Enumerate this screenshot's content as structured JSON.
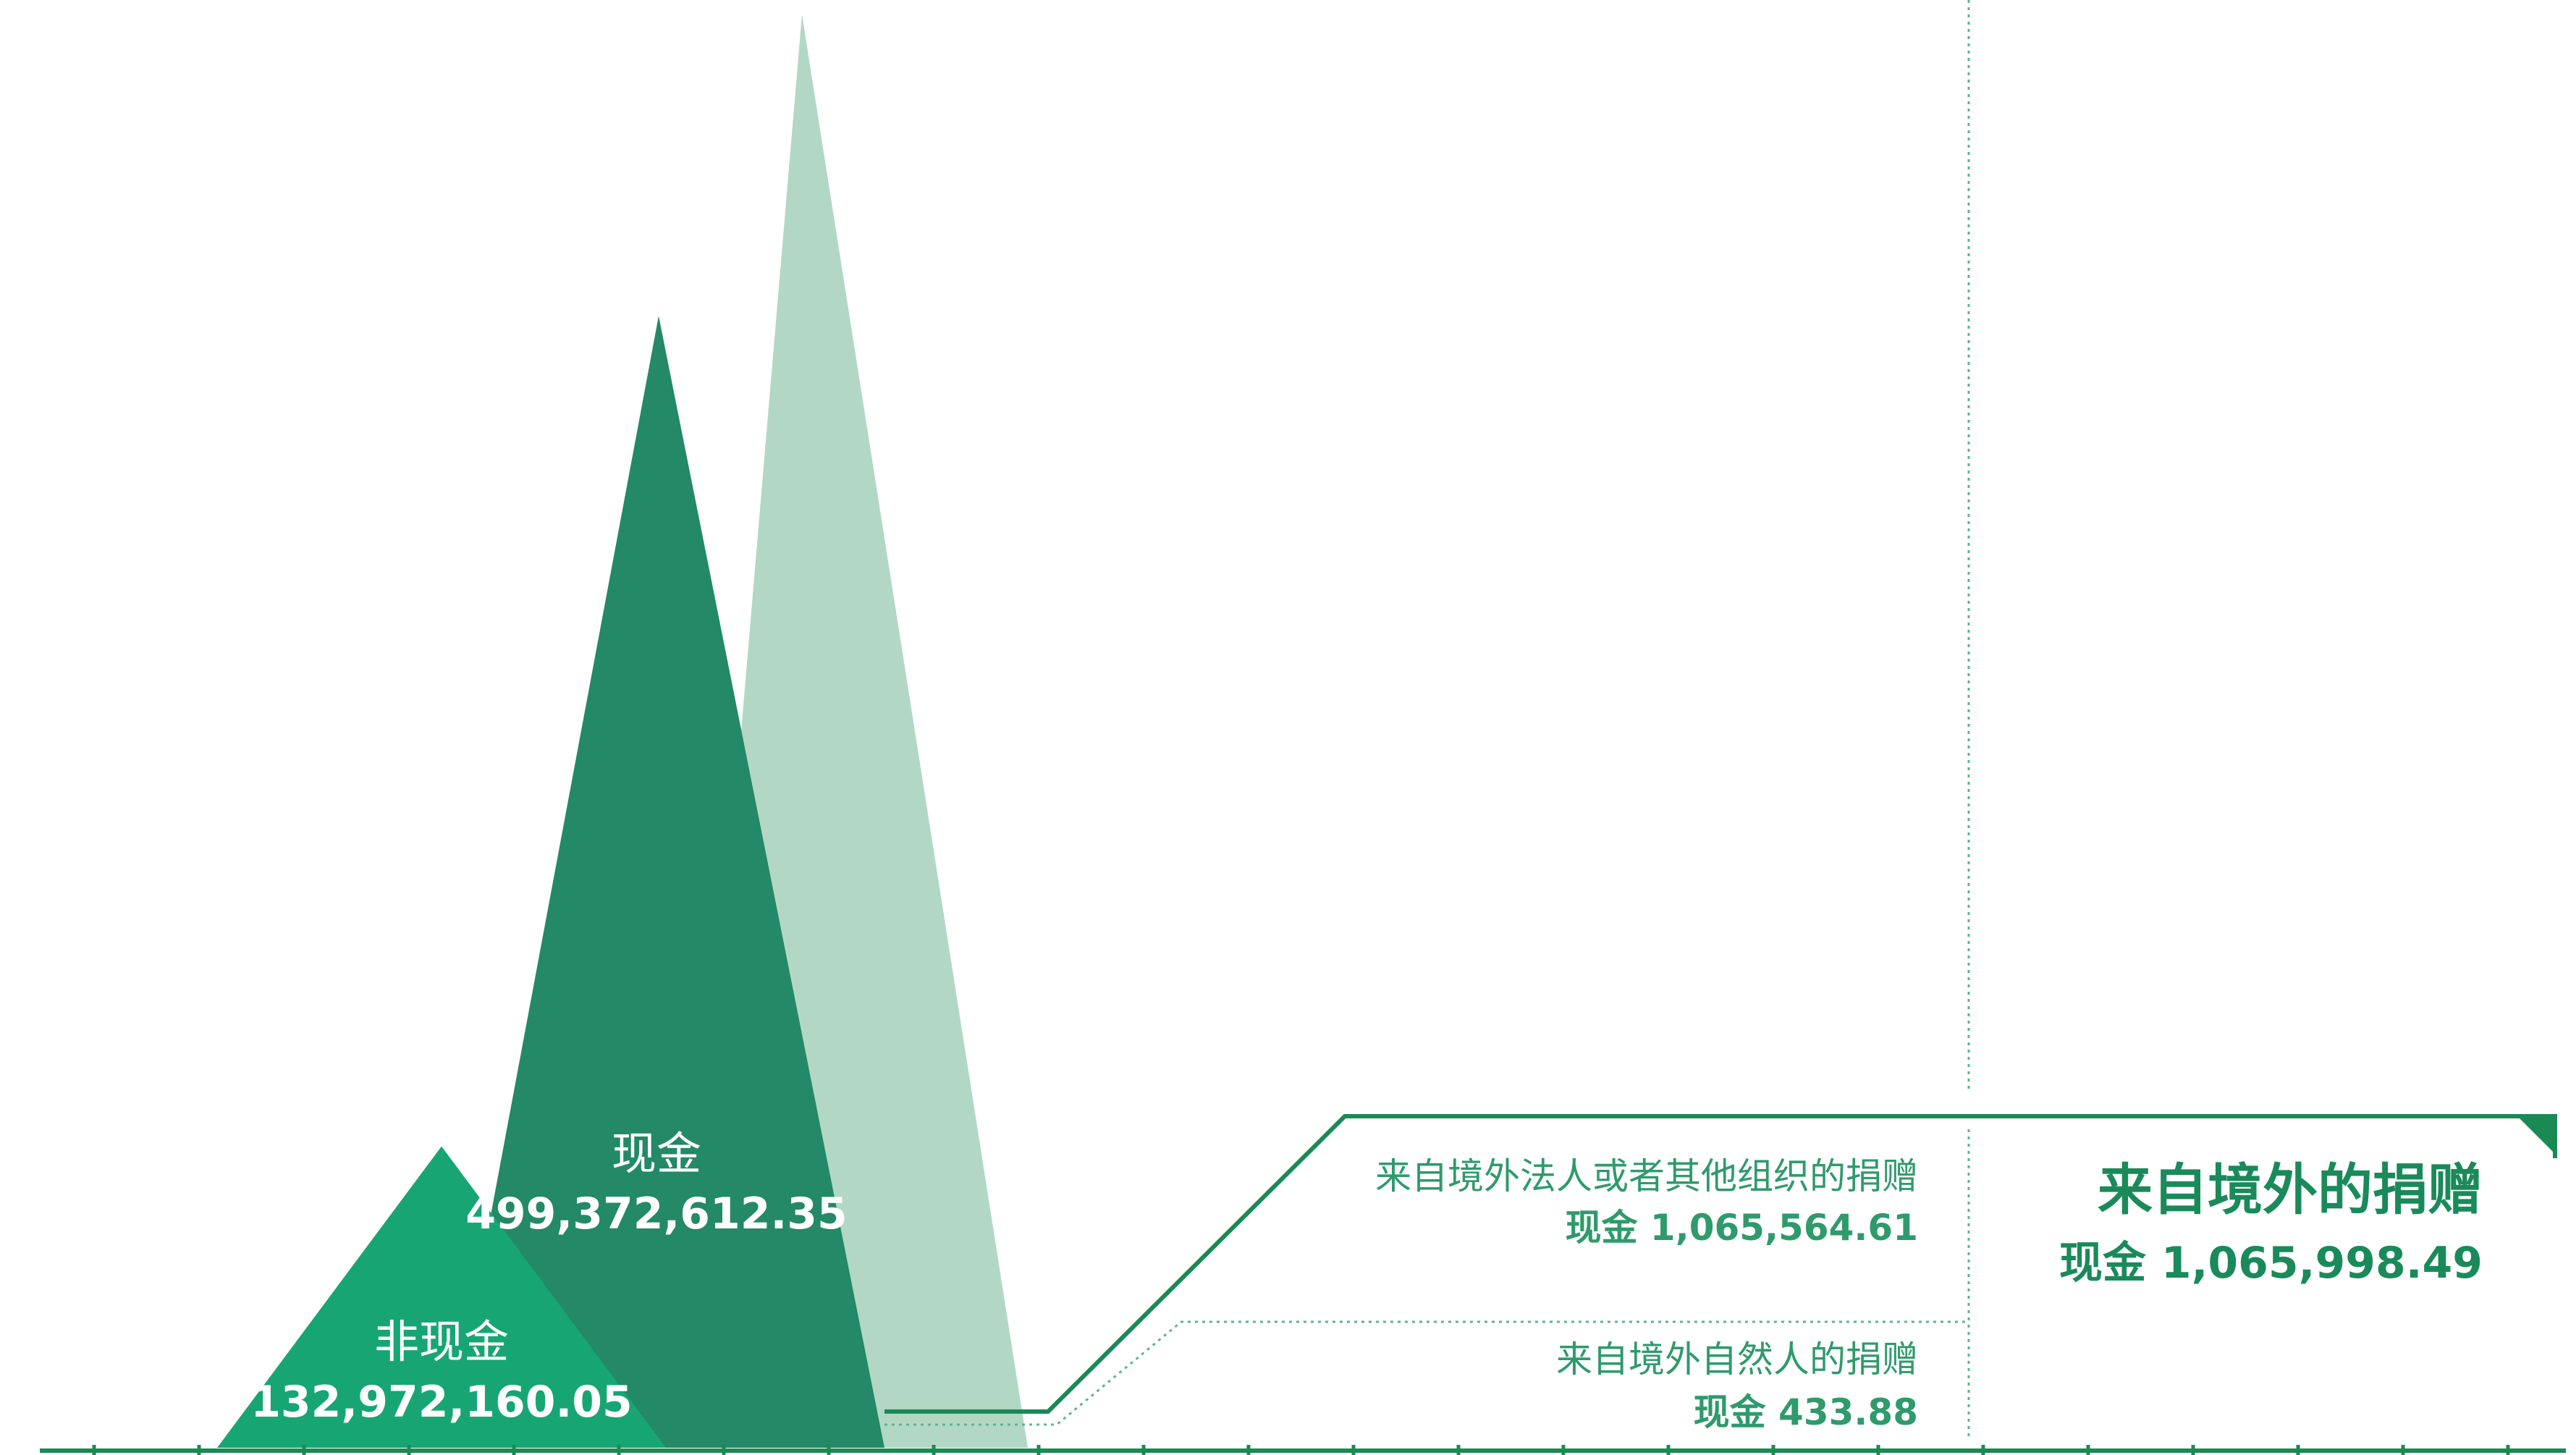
{
  "chart_data": {
    "type": "area",
    "colors": {
      "light": "#b2d8c5",
      "dark": "#238966",
      "mid": "#17a673",
      "line": "#1a8a55",
      "text_dark": "#1a8a5a",
      "text_light": "#2f9a6c",
      "dotted": "#5bb58c",
      "white": "#ffffff"
    },
    "peaks": [
      {
        "name": "total",
        "value": 632344772.4,
        "color": "light"
      },
      {
        "name": "cash",
        "value": 499372612.35,
        "color": "dark",
        "label": "现金",
        "value_text": "499,372,612.35"
      },
      {
        "name": "non_cash",
        "value": 132972160.05,
        "color": "mid",
        "label": "非现金",
        "value_text": "132,972,160.05"
      }
    ],
    "foreign_donations": {
      "title": "来自境外的捐赠",
      "value_text": "现金 1,065,998.49",
      "value": 1065998.49,
      "items": [
        {
          "label": "来自境外法人或者其他组织的捐赠",
          "value_text": "现金 1,065,564.61",
          "value": 1065564.61
        },
        {
          "label": "来自境外自然人的捐赠",
          "value_text": "现金 433.88",
          "value": 433.88
        }
      ]
    },
    "axis_tick_count": 24
  }
}
